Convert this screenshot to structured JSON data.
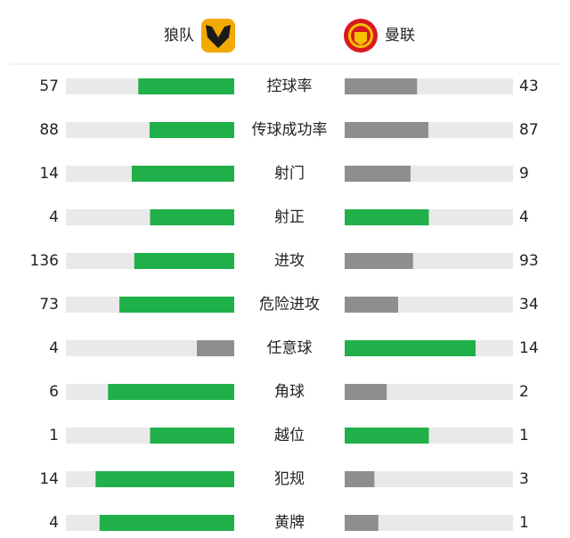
{
  "header": {
    "home": "狼队",
    "away": "曼联"
  },
  "rows": [
    {
      "label": "控球率",
      "home": 57,
      "away": 43
    },
    {
      "label": "传球成功率",
      "home": 88,
      "away": 87
    },
    {
      "label": "射门",
      "home": 14,
      "away": 9
    },
    {
      "label": "射正",
      "home": 4,
      "away": 4
    },
    {
      "label": "进攻",
      "home": 136,
      "away": 93
    },
    {
      "label": "危险进攻",
      "home": 73,
      "away": 34
    },
    {
      "label": "任意球",
      "home": 4,
      "away": 14
    },
    {
      "label": "角球",
      "home": 6,
      "away": 2
    },
    {
      "label": "越位",
      "home": 1,
      "away": 1
    },
    {
      "label": "犯规",
      "home": 14,
      "away": 3
    },
    {
      "label": "黄牌",
      "home": 4,
      "away": 1
    }
  ]
}
